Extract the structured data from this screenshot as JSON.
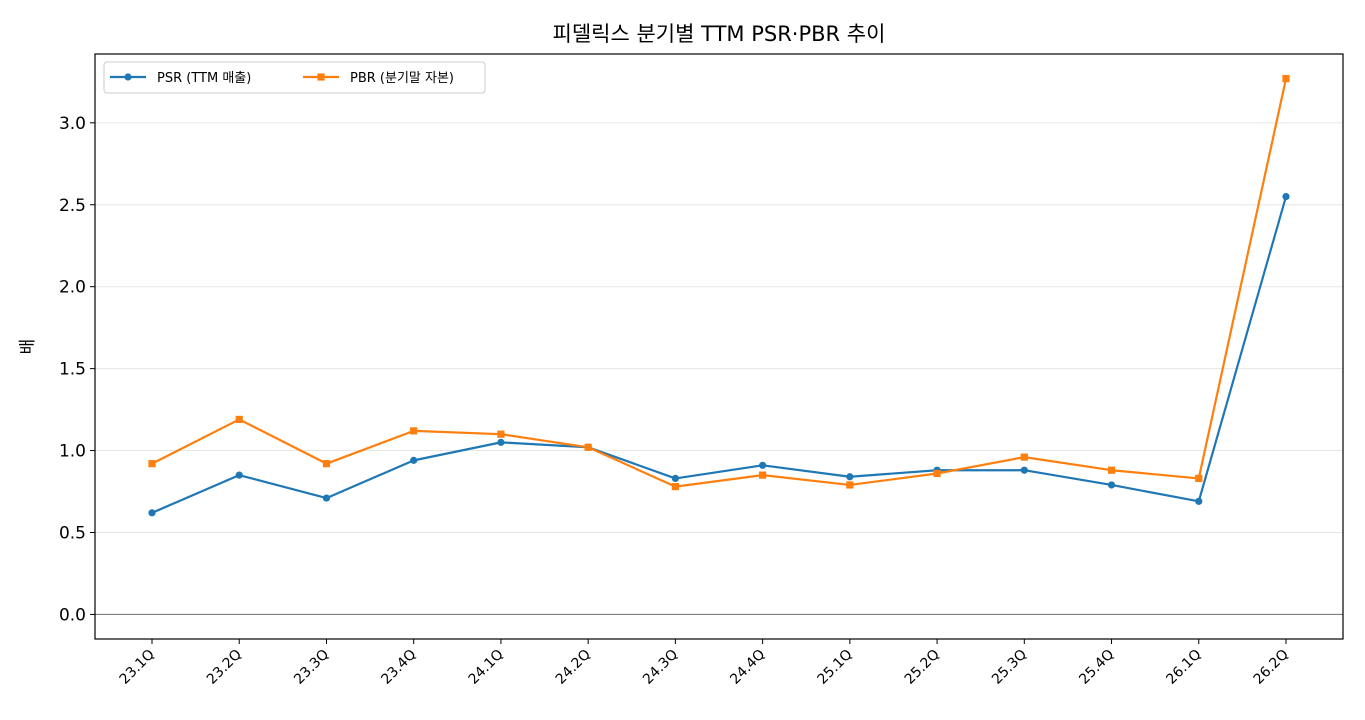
{
  "chart_data": {
    "type": "line",
    "title": "피델릭스 분기별 TTM PSR·PBR 추이",
    "xlabel": "",
    "ylabel": "배",
    "categories": [
      "23.1Q",
      "23.2Q",
      "23.3Q",
      "23.4Q",
      "24.1Q",
      "24.2Q",
      "24.3Q",
      "24.4Q",
      "25.1Q",
      "25.2Q",
      "25.3Q",
      "25.4Q",
      "26.1Q",
      "26.2Q"
    ],
    "series": [
      {
        "name": "PSR (TTM 매출)",
        "color": "#1f77b4",
        "marker": "circle",
        "values": [
          0.62,
          0.85,
          0.71,
          0.94,
          1.05,
          1.02,
          0.83,
          0.91,
          0.84,
          0.88,
          0.88,
          0.79,
          0.69,
          2.55
        ]
      },
      {
        "name": "PBR (분기말 자본)",
        "color": "#ff7f0e",
        "marker": "square",
        "values": [
          0.92,
          1.19,
          0.92,
          1.12,
          1.1,
          1.02,
          0.78,
          0.85,
          0.79,
          0.86,
          0.96,
          0.88,
          0.83,
          3.27
        ]
      }
    ],
    "ylim": [
      -0.15,
      3.42
    ],
    "yticks": [
      "0.0",
      "0.5",
      "1.0",
      "1.5",
      "2.0",
      "2.5",
      "3.0"
    ],
    "ytick_values": [
      0,
      0.5,
      1.0,
      1.5,
      2.0,
      2.5,
      3.0
    ],
    "grid": "horizontal",
    "zero_line": true,
    "legend_position": "top-left"
  }
}
